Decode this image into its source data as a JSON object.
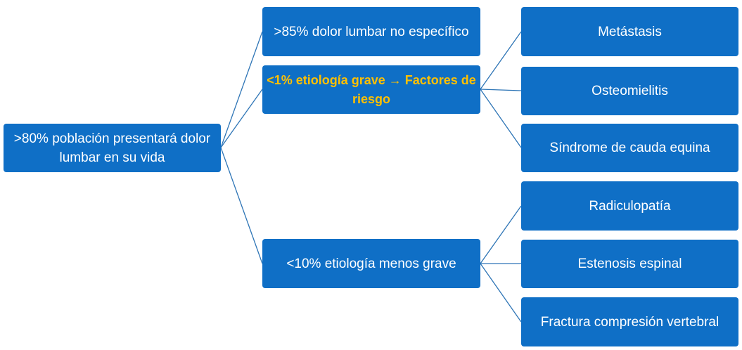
{
  "root": {
    "text": ">80% población presentará dolor lumbar en su vida"
  },
  "level1": [
    {
      "text": ">85% dolor lumbar no específico"
    },
    {
      "text": "<1% etiología grave → Factores de riesgo"
    },
    {
      "text": "<10% etiología menos grave"
    }
  ],
  "level2": [
    {
      "text": "Metástasis"
    },
    {
      "text": "Osteomielitis"
    },
    {
      "text": "Síndrome de cauda equina"
    },
    {
      "text": "Radiculopatía"
    },
    {
      "text": "Estenosis espinal"
    },
    {
      "text": "Fractura compresión vertebral"
    }
  ],
  "colors": {
    "box_fill": "#0f6fc6",
    "box_text": "#ffffff",
    "highlight_text": "#ffc000",
    "connector": "#2e75b6"
  }
}
